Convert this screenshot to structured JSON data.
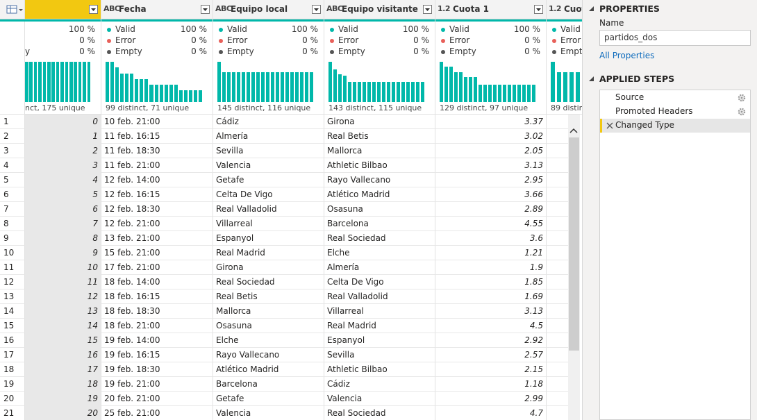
{
  "grid": {
    "columns": [
      {
        "profile": {
          "valid_pct": "100 %",
          "error_pct": "0 %",
          "empty_label": "y",
          "empty_pct": "0 %",
          "histogram": [
            1,
            1,
            1,
            1,
            1,
            1,
            1,
            1,
            1,
            1,
            1,
            1,
            1,
            1,
            1
          ],
          "summary": "nct, 175 unique"
        }
      },
      {
        "type_icon": "ABC",
        "name": "Fecha",
        "profile": {
          "valid_label": "Valid",
          "valid_pct": "100 %",
          "error_label": "Error",
          "error_pct": "0 %",
          "empty_label": "Empty",
          "empty_pct": "0 %",
          "histogram": [
            7,
            7,
            6,
            5,
            5,
            5,
            4,
            4,
            4,
            3,
            3,
            3,
            3,
            3,
            3,
            2,
            2,
            2,
            2,
            2
          ],
          "summary": "99 distinct, 71 unique"
        }
      },
      {
        "type_icon": "ABC",
        "name": "Equipo local",
        "profile": {
          "valid_label": "Valid",
          "valid_pct": "100 %",
          "error_label": "Error",
          "error_pct": "0 %",
          "empty_label": "Empty",
          "empty_pct": "0 %",
          "histogram": [
            8,
            6,
            6,
            6,
            6,
            6,
            6,
            6,
            6,
            6,
            6,
            6,
            6,
            6,
            6,
            6,
            6,
            6,
            6,
            6
          ],
          "summary": "145 distinct, 116 unique"
        }
      },
      {
        "type_icon": "ABC",
        "name": "Equipo visitante",
        "profile": {
          "valid_label": "Valid",
          "valid_pct": "100 %",
          "error_label": "Error",
          "error_pct": "0 %",
          "empty_label": "Empty",
          "empty_pct": "0 %",
          "histogram": [
            8,
            6.5,
            5.5,
            5.2,
            4,
            4,
            4,
            4,
            4,
            4,
            4,
            4,
            4,
            4,
            4,
            4,
            4,
            4,
            4,
            4
          ],
          "summary": "143 distinct, 115 unique"
        }
      },
      {
        "type_icon": "1.2",
        "name": "Cuota 1",
        "profile": {
          "valid_label": "Valid",
          "valid_pct": "100 %",
          "error_label": "Error",
          "error_pct": "0 %",
          "empty_label": "Empty",
          "empty_pct": "0 %",
          "histogram": [
            8,
            7,
            7,
            6,
            6,
            5,
            5,
            5,
            3.5,
            3.5,
            3.5,
            3.5,
            3.5,
            3.5,
            3.5,
            3.5,
            3.5,
            3.5,
            3.5,
            3.5
          ],
          "summary": "129 distinct, 97 unique"
        }
      },
      {
        "type_icon": "1.2",
        "name": "Cuot",
        "profile": {
          "valid_label": "Valid",
          "error_label": "Error",
          "empty_label": "Empt",
          "histogram": [
            8,
            6,
            6,
            6,
            6,
            6
          ],
          "summary": "89 distin"
        }
      }
    ],
    "rows": [
      [
        1,
        0,
        "10 feb. 21:00",
        "Cádiz",
        "Girona",
        3.37
      ],
      [
        2,
        1,
        "11 feb. 16:15",
        "Almería",
        "Real Betis",
        3.02
      ],
      [
        3,
        2,
        "11 feb. 18:30",
        "Sevilla",
        "Mallorca",
        2.05
      ],
      [
        4,
        3,
        "11 feb. 21:00",
        "Valencia",
        "Athletic Bilbao",
        3.13
      ],
      [
        5,
        4,
        "12 feb. 14:00",
        "Getafe",
        "Rayo Vallecano",
        2.95
      ],
      [
        6,
        5,
        "12 feb. 16:15",
        "Celta De Vigo",
        "Atlético Madrid",
        3.66
      ],
      [
        7,
        6,
        "12 feb. 18:30",
        "Real Valladolid",
        "Osasuna",
        2.89
      ],
      [
        8,
        7,
        "12 feb. 21:00",
        "Villarreal",
        "Barcelona",
        4.55
      ],
      [
        9,
        8,
        "13 feb. 21:00",
        "Espanyol",
        "Real Sociedad",
        3.6
      ],
      [
        10,
        9,
        "15 feb. 21:00",
        "Real Madrid",
        "Elche",
        1.21
      ],
      [
        11,
        10,
        "17 feb. 21:00",
        "Girona",
        "Almería",
        1.9
      ],
      [
        12,
        11,
        "18 feb. 14:00",
        "Real Sociedad",
        "Celta De Vigo",
        1.85
      ],
      [
        13,
        12,
        "18 feb. 16:15",
        "Real Betis",
        "Real Valladolid",
        1.69
      ],
      [
        14,
        13,
        "18 feb. 18:30",
        "Mallorca",
        "Villarreal",
        3.13
      ],
      [
        15,
        14,
        "18 feb. 21:00",
        "Osasuna",
        "Real Madrid",
        4.5
      ],
      [
        16,
        15,
        "19 feb. 14:00",
        "Elche",
        "Espanyol",
        2.92
      ],
      [
        17,
        16,
        "19 feb. 16:15",
        "Rayo Vallecano",
        "Sevilla",
        2.57
      ],
      [
        18,
        17,
        "19 feb. 18:30",
        "Atlético Madrid",
        "Athletic Bilbao",
        2.15
      ],
      [
        19,
        18,
        "19 feb. 21:00",
        "Barcelona",
        "Cádiz",
        1.18
      ],
      [
        20,
        19,
        "20 feb. 21:00",
        "Getafe",
        "Valencia",
        2.99
      ],
      [
        21,
        20,
        "25 feb. 21:00",
        "Valencia",
        "Real Sociedad",
        4.7
      ]
    ]
  },
  "properties": {
    "heading": "PROPERTIES",
    "name_label": "Name",
    "name_value": "partidos_dos",
    "link": "All Properties"
  },
  "applied_steps": {
    "heading": "APPLIED STEPS",
    "steps": [
      "Source",
      "Promoted Headers",
      "Changed Type"
    ]
  }
}
